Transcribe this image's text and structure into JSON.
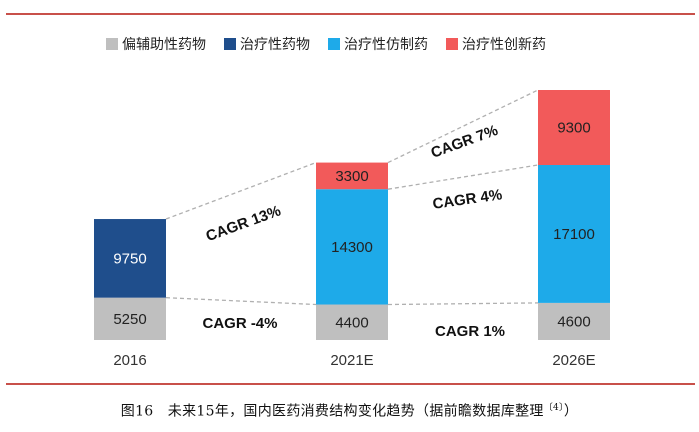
{
  "chart_data": {
    "type": "bar",
    "stacked": true,
    "categories": [
      "2016",
      "2021E",
      "2026E"
    ],
    "series": [
      {
        "name": "偏辅助性药物",
        "color": "#bfbfbf",
        "values": [
          5250,
          4400,
          4600
        ]
      },
      {
        "name": "治疗性药物",
        "color": "#1f4e8c",
        "values": [
          9750,
          null,
          null
        ]
      },
      {
        "name": "治疗性仿制药",
        "color": "#1eaae9",
        "values": [
          null,
          14300,
          17100
        ]
      },
      {
        "name": "治疗性创新药",
        "color": "#f25a5a",
        "values": [
          null,
          3300,
          9300
        ]
      }
    ],
    "annotations": [
      "CAGR 13%",
      "CAGR -4%",
      "CAGR 7%",
      "CAGR 4%",
      "CAGR 1%"
    ],
    "legend_position": "top",
    "grid": false
  },
  "caption": {
    "text": "图16　未来15年，国内医药消费结构变化趋势（据前瞻数据库整理",
    "ref": "〔4〕",
    "close": "）"
  }
}
